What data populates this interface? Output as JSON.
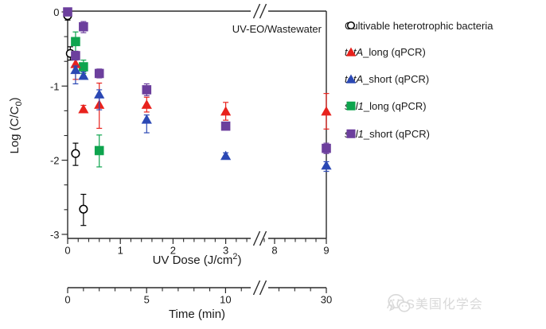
{
  "figure": {
    "annotation": "UV-EO/Wastewater",
    "watermark_text": "ACS美国化学会"
  },
  "colors": {
    "red": "#e8221d",
    "blue": "#2b48b4",
    "green": "#0ea44e",
    "purple": "#6c3f9d",
    "black": "#000000",
    "axis": "#2a2a2a",
    "watermark": "#d9d9d9"
  },
  "legend": {
    "items": [
      {
        "marker": "circle-open",
        "color": "#000000",
        "italic_part": "",
        "text": "Cultivable heterotrophic bacteria"
      },
      {
        "marker": "triangle",
        "color": "#e8221d",
        "italic_part": "tetA",
        "text": "_long (qPCR)"
      },
      {
        "marker": "triangle",
        "color": "#2b48b4",
        "italic_part": "tetA",
        "text": "_short (qPCR)"
      },
      {
        "marker": "square",
        "color": "#0ea44e",
        "italic_part": "sul1",
        "text": "_long (qPCR)"
      },
      {
        "marker": "square",
        "color": "#6c3f9d",
        "italic_part": "sul1",
        "text": "_short (qPCR)"
      }
    ]
  },
  "chart_data": {
    "type": "scatter",
    "title": "",
    "annotation": "UV-EO/Wastewater",
    "x_axis": {
      "label": {
        "pre": "UV Dose (J/cm",
        "sup": "2",
        "post": ")"
      },
      "tick_values": [
        0,
        1,
        2,
        3,
        8,
        9
      ],
      "tick_labels": [
        "0",
        "1",
        "2",
        "3",
        "8",
        "9"
      ],
      "minor_tick_values": [
        0.2,
        0.4,
        0.6,
        0.8,
        1.2,
        1.4,
        1.6,
        1.8,
        2.2,
        2.4,
        2.6,
        2.8,
        3.2,
        3.4,
        7.8,
        8.2,
        8.4,
        8.6,
        8.8
      ],
      "axis_break": {
        "after": 3.4,
        "resume": 7.8
      },
      "range": [
        0,
        9
      ]
    },
    "y_axis": {
      "label": {
        "pre": "Log (C/C",
        "sub": "0",
        "post": ")"
      },
      "tick_values": [
        0,
        -1,
        -2,
        -3
      ],
      "tick_labels": [
        "0",
        "-1",
        "-2",
        "-3"
      ],
      "minor_tick_values": [
        -0.333,
        -0.667,
        -1.333,
        -1.667,
        -2.333,
        -2.667
      ],
      "range": [
        -3,
        0
      ],
      "grid": false
    },
    "time_axis": {
      "label": "Time (min)",
      "tick_values": [
        0,
        5,
        10,
        30
      ],
      "tick_labels": [
        "0",
        "5",
        "10",
        "30"
      ],
      "minor_tick_values": [
        1,
        2,
        3,
        4,
        6,
        7,
        8,
        9,
        11,
        27,
        28,
        29
      ],
      "axis_break": {
        "after": 11,
        "resume": 27
      },
      "range": [
        0,
        30
      ]
    },
    "legend_position": "right-outside",
    "series": [
      {
        "name": "Cultivable heterotrophic bacteria",
        "marker": "circle-open",
        "color": "#000000",
        "points": [
          {
            "x": 0,
            "y": -0.05,
            "el": 0.06,
            "eh": 0.06
          },
          {
            "x": 0.05,
            "y": -0.56,
            "el": 0.09,
            "eh": 0.09
          },
          {
            "x": 0.15,
            "y": -1.91,
            "el": 0.16,
            "eh": 0.14
          },
          {
            "x": 0.3,
            "y": -2.66,
            "el": 0.22,
            "eh": 0.2
          }
        ]
      },
      {
        "name": "sul1_long (qPCR)",
        "marker": "square",
        "color": "#0ea44e",
        "points": [
          {
            "x": 0.15,
            "y": -0.4,
            "el": 0.14,
            "eh": 0.13
          },
          {
            "x": 0.3,
            "y": -0.74,
            "el": 0.09,
            "eh": 0.09
          },
          {
            "x": 0.6,
            "y": -1.87,
            "el": 0.22,
            "eh": 0.21
          }
        ]
      },
      {
        "name": "tetA_long (qPCR)",
        "marker": "triangle",
        "color": "#e8221d",
        "points": [
          {
            "x": 0.15,
            "y": -0.7,
            "el": 0.21,
            "eh": 0.06
          },
          {
            "x": 0.3,
            "y": -1.31,
            "el": 0.05,
            "eh": 0.05
          },
          {
            "x": 0.6,
            "y": -1.25,
            "el": 0.32,
            "eh": 0.29
          },
          {
            "x": 1.5,
            "y": -1.25,
            "el": 0.1,
            "eh": 0.1
          },
          {
            "x": 3,
            "y": -1.34,
            "el": 0.12,
            "eh": 0.12
          },
          {
            "x": 9,
            "y": -1.34,
            "el": 0.24,
            "eh": 0.24
          }
        ]
      },
      {
        "name": "tetA_short (qPCR)",
        "marker": "triangle",
        "color": "#2b48b4",
        "points": [
          {
            "x": 0.15,
            "y": -0.78,
            "el": 0.19,
            "eh": 0.05
          },
          {
            "x": 0.3,
            "y": -0.86,
            "el": 0.05,
            "eh": 0.05
          },
          {
            "x": 0.6,
            "y": -1.11,
            "el": 0.21,
            "eh": 0.06
          },
          {
            "x": 1.5,
            "y": -1.45,
            "el": 0.18,
            "eh": 0.06
          },
          {
            "x": 3,
            "y": -1.94,
            "el": 0.04,
            "eh": 0.04
          },
          {
            "x": 9,
            "y": -2.07,
            "el": 0.08,
            "eh": 0.05
          }
        ]
      },
      {
        "name": "sul1_short (qPCR)",
        "marker": "square",
        "color": "#6c3f9d",
        "points": [
          {
            "x": 0,
            "y": 0.0,
            "el": 0.04,
            "eh": 0.04
          },
          {
            "x": 0.15,
            "y": -0.59,
            "el": 0.06,
            "eh": 0.06
          },
          {
            "x": 0.3,
            "y": -0.2,
            "el": 0.08,
            "eh": 0.07
          },
          {
            "x": 0.6,
            "y": -0.83,
            "el": 0.06,
            "eh": 0.06
          },
          {
            "x": 1.5,
            "y": -1.05,
            "el": 0.08,
            "eh": 0.08
          },
          {
            "x": 3,
            "y": -1.54,
            "el": 0.05,
            "eh": 0.05
          },
          {
            "x": 9,
            "y": -1.84,
            "el": 0.07,
            "eh": 0.07
          }
        ]
      }
    ]
  }
}
